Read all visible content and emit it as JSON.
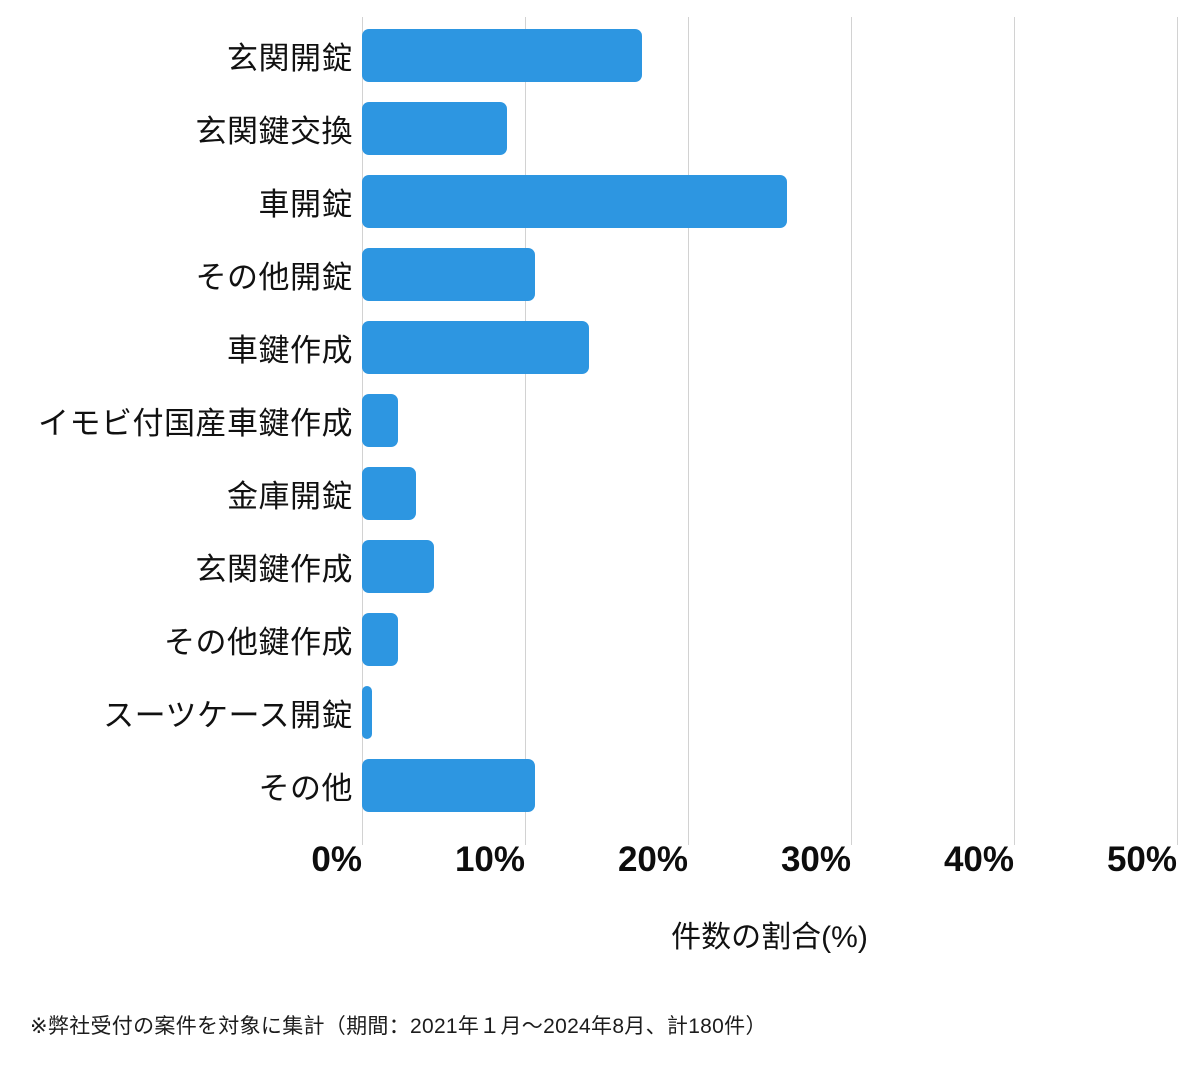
{
  "chart_data": {
    "type": "bar",
    "orientation": "horizontal",
    "categories": [
      "玄関開錠",
      "玄関鍵交換",
      "車開錠",
      "その他開錠",
      "車鍵作成",
      "イモビ付国産車鍵作成",
      "金庫開錠",
      "玄関鍵作成",
      "その他鍵作成",
      "スーツケース開錠",
      "その他"
    ],
    "values": [
      17.2,
      8.9,
      26.1,
      10.6,
      13.9,
      2.2,
      3.3,
      4.4,
      2.2,
      0.6,
      10.6
    ],
    "title": "",
    "xlabel": "件数の割合(%)",
    "ylabel": "",
    "xlim": [
      0,
      50
    ],
    "tick_step": 10,
    "x_tick_labels": [
      "0%",
      "10%",
      "20%",
      "30%",
      "40%",
      "50%"
    ],
    "grid": "vertical",
    "legend": "none",
    "bar_color": "#2d96e1",
    "gridline_color": "#d2d2d2",
    "note": "※弊社受付の案件を対象に集計（期間：2021年１月～2024年8月、計180件）"
  }
}
